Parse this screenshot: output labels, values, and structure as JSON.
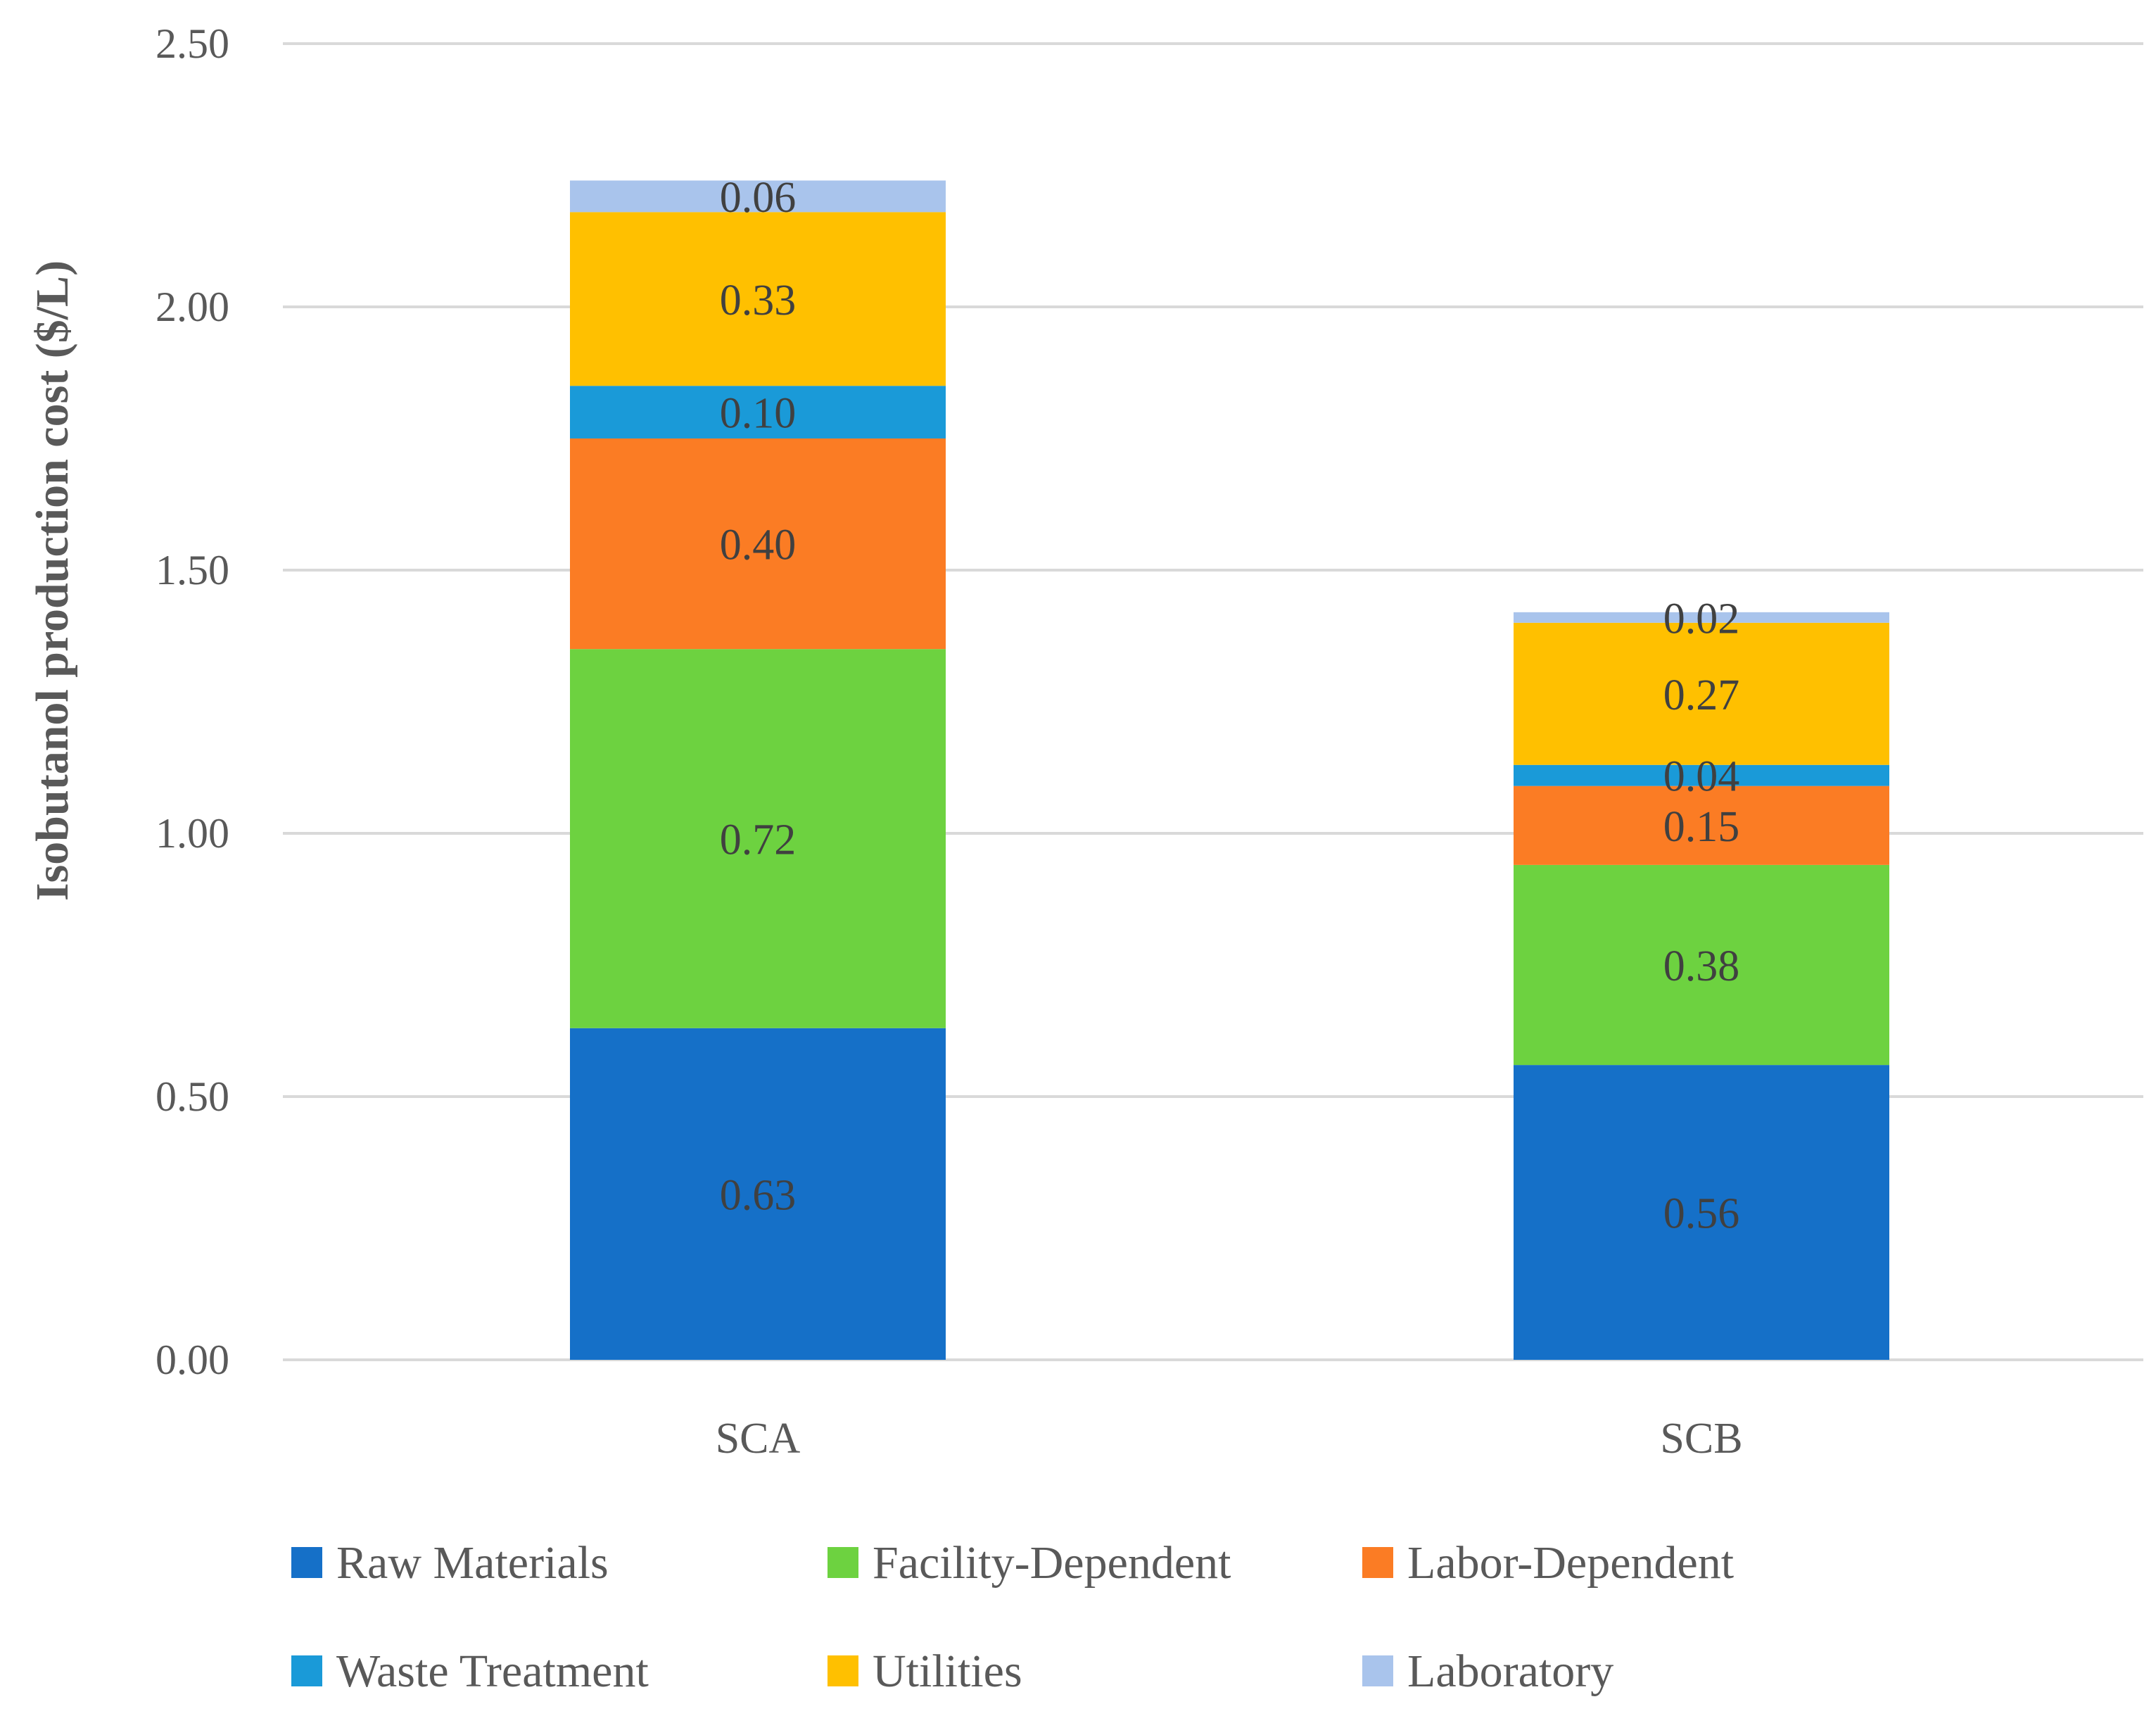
{
  "chart_data": {
    "type": "bar",
    "stacked": true,
    "title": "",
    "xlabel": "",
    "ylabel": "Isobutanol production cost  ($/L)",
    "ylim": [
      0,
      2.5
    ],
    "yticks": [
      "0.00",
      "0.50",
      "1.00",
      "1.50",
      "2.00",
      "2.50"
    ],
    "grid": true,
    "legend_position": "bottom",
    "categories": [
      "SCA",
      "SCB"
    ],
    "series": [
      {
        "name": "Raw Materials",
        "color": "#1570C8",
        "values": [
          0.63,
          0.56
        ],
        "labels": [
          "0.63",
          "0.56"
        ]
      },
      {
        "name": "Facility-Dependent",
        "color": "#6DD240",
        "values": [
          0.72,
          0.38
        ],
        "labels": [
          "0.72",
          "0.38"
        ]
      },
      {
        "name": "Labor-Dependent",
        "color": "#FB7C24",
        "values": [
          0.4,
          0.15
        ],
        "labels": [
          "0.40",
          "0.15"
        ]
      },
      {
        "name": "Waste Treatment",
        "color": "#1A9AD8",
        "values": [
          0.1,
          0.04
        ],
        "labels": [
          "0.10",
          "0.04"
        ]
      },
      {
        "name": "Utilities",
        "color": "#FFC000",
        "values": [
          0.33,
          0.27
        ],
        "labels": [
          "0.33",
          "0.27"
        ]
      },
      {
        "name": "Laboratory",
        "color": "#A9C4EC",
        "values": [
          0.06,
          0.02
        ],
        "labels": [
          "0.06",
          "0.02"
        ]
      }
    ]
  }
}
